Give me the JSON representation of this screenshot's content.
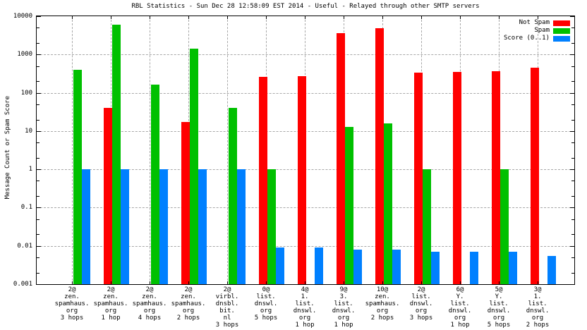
{
  "title": "RBL Statistics - Sun Dec 28 12:58:09 EST 2014 - Useful - Relayed through other SMTP servers",
  "y_axis": {
    "label": "Message Count or Spam Score",
    "ticks": [
      "10000",
      "1000",
      "100",
      "10",
      "1",
      "0.1",
      "0.01",
      "0.001"
    ]
  },
  "chart_data": {
    "type": "bar",
    "title": "RBL Statistics - Sun Dec 28 12:58:09 EST 2014 - Useful - Relayed through other SMTP servers",
    "xlabel": "",
    "ylabel": "Message Count or Spam Score",
    "y_scale": "log",
    "ylim": [
      0.001,
      10000
    ],
    "grid": true,
    "legend_position": "top-right-inside",
    "categories": [
      [
        "2@",
        "zen.",
        "spamhaus.",
        "org",
        "3 hops"
      ],
      [
        "2@",
        "zen.",
        "spamhaus.",
        "org",
        "1 hop"
      ],
      [
        "2@",
        "zen.",
        "spamhaus.",
        "org",
        "4 hops"
      ],
      [
        "2@",
        "zen.",
        "spamhaus.",
        "org",
        "2 hops"
      ],
      [
        "2@",
        "virbl.",
        "dnsbl.",
        "bit.",
        "nl",
        "3 hops"
      ],
      [
        "0@",
        "list.",
        "dnswl.",
        "org",
        "5 hops"
      ],
      [
        "4@",
        "1.",
        "list.",
        "dnswl.",
        "org",
        "1 hop"
      ],
      [
        "9@",
        "3.",
        "list.",
        "dnswl.",
        "org",
        "1 hop"
      ],
      [
        "10@",
        "zen.",
        "spamhaus.",
        "org",
        "2 hops"
      ],
      [
        "2@",
        "list.",
        "dnswl.",
        "org",
        "3 hops"
      ],
      [
        "6@",
        "Y.",
        "list.",
        "dnswl.",
        "org",
        "1 hop"
      ],
      [
        "5@",
        "Y.",
        "list.",
        "dnswl.",
        "org",
        "5 hops"
      ],
      [
        "3@",
        "1.",
        "list.",
        "dnswl.",
        "org",
        "2 hops"
      ]
    ],
    "series": [
      {
        "name": "Not Spam",
        "color": "#ff0000",
        "values": [
          null,
          40,
          null,
          17,
          null,
          260,
          270,
          3600,
          4900,
          340,
          350,
          360,
          460
        ]
      },
      {
        "name": "Spam",
        "color": "#00c000",
        "values": [
          400,
          6000,
          160,
          1400,
          41,
          1,
          null,
          13,
          16,
          1,
          null,
          1,
          null
        ]
      },
      {
        "name": "Score (0..1)",
        "color": "#0080ff",
        "values": [
          1,
          1,
          1,
          1,
          1,
          0.009,
          0.009,
          0.008,
          0.008,
          0.007,
          0.007,
          0.007,
          0.0055
        ]
      }
    ]
  }
}
